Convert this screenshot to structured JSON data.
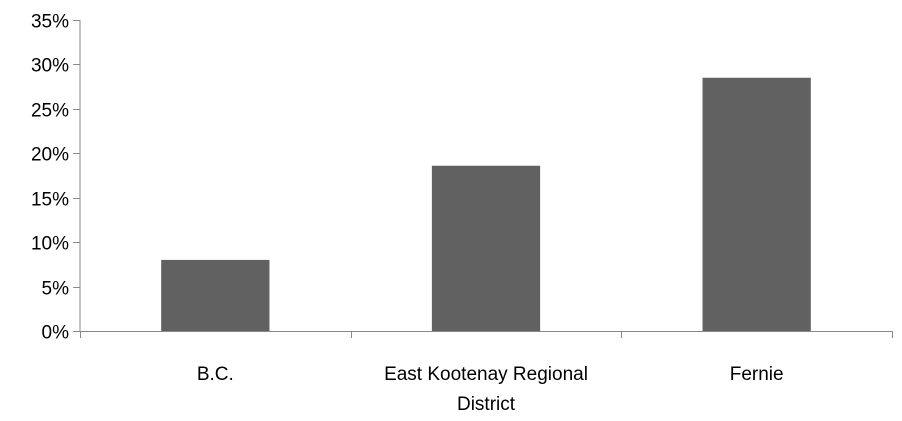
{
  "chart_data": {
    "type": "bar",
    "title": "",
    "xlabel": "",
    "ylabel": "",
    "categories": [
      [
        "B.C."
      ],
      [
        "East Kootenay Regional",
        "District"
      ],
      [
        "Fernie"
      ]
    ],
    "values": [
      8.0,
      18.6,
      28.5
    ],
    "value_format": "percent",
    "ylim": [
      0,
      35
    ],
    "yticks": [
      0,
      5,
      10,
      15,
      20,
      25,
      30,
      35
    ],
    "ytick_labels": [
      "0%",
      "5%",
      "10%",
      "15%",
      "20%",
      "25%",
      "30%",
      "35%"
    ],
    "bar_color": "#616161",
    "axis_color": "#888888",
    "grid": false,
    "legend": "none"
  }
}
